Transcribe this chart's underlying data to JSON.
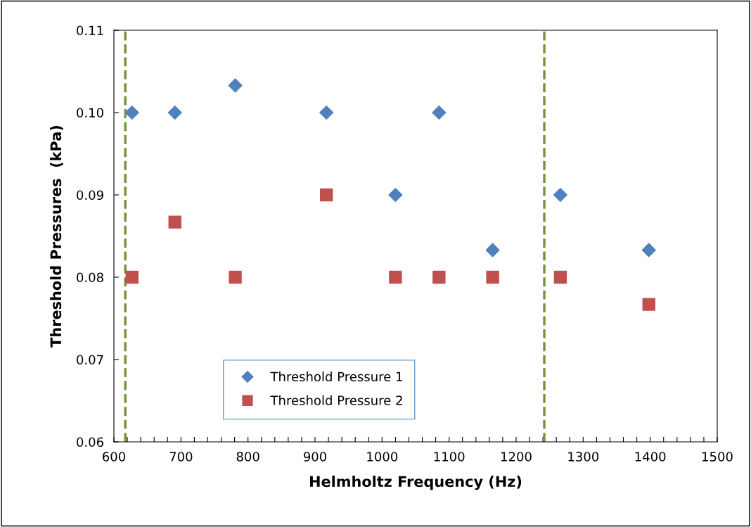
{
  "chart_data": {
    "type": "scatter",
    "xlabel": "Helmholtz Frequency (Hz)",
    "ylabel": "Threshold Pressures  (kPa)",
    "series": [
      {
        "name": "Threshold Pressure 1",
        "color": "#4f81bd",
        "marker": "diamond",
        "x": [
          627,
          691,
          781,
          917,
          1020,
          1085,
          1165,
          1266,
          1398
        ],
        "values": [
          0.1,
          0.1,
          0.1033,
          0.1,
          0.09,
          0.1,
          0.0833,
          0.09,
          0.0833
        ]
      },
      {
        "name": "Threshold Pressure 2",
        "color": "#c0504d",
        "marker": "square",
        "x": [
          627,
          691,
          781,
          917,
          1020,
          1085,
          1165,
          1266,
          1398
        ],
        "values": [
          0.08,
          0.0867,
          0.08,
          0.09,
          0.08,
          0.08,
          0.08,
          0.08,
          0.0767
        ]
      }
    ],
    "xlim": [
      600,
      1500
    ],
    "xticks": [
      600,
      {
        "value": 620,
        "label": null
      },
      {
        "value": 640,
        "label": null
      },
      {
        "value": 660,
        "label": null
      },
      {
        "value": 680,
        "label": null
      },
      700,
      {
        "value": 720,
        "label": null
      },
      {
        "value": 740,
        "label": null
      },
      {
        "value": 760,
        "label": null
      },
      {
        "value": 780,
        "label": null
      },
      800,
      {
        "value": 820,
        "label": null
      },
      {
        "value": 840,
        "label": null
      },
      {
        "value": 860,
        "label": null
      },
      {
        "value": 880,
        "label": null
      },
      900,
      {
        "value": 920,
        "label": null
      },
      {
        "value": 940,
        "label": null
      },
      {
        "value": 960,
        "label": null
      },
      {
        "value": 980,
        "label": null
      },
      1000,
      {
        "value": 1020,
        "label": null
      },
      {
        "value": 1040,
        "label": null
      },
      {
        "value": 1060,
        "label": null
      },
      {
        "value": 1080,
        "label": null
      },
      1100,
      {
        "value": 1120,
        "label": null
      },
      {
        "value": 1140,
        "label": null
      },
      {
        "value": 1160,
        "label": null
      },
      {
        "value": 1180,
        "label": null
      },
      1200,
      {
        "value": 1220,
        "label": null
      },
      {
        "value": 1240,
        "label": null
      },
      {
        "value": 1260,
        "label": null
      },
      {
        "value": 1280,
        "label": null
      },
      1300,
      {
        "value": 1320,
        "label": null
      },
      {
        "value": 1340,
        "label": null
      },
      {
        "value": 1360,
        "label": null
      },
      {
        "value": 1380,
        "label": null
      },
      1400,
      {
        "value": 1420,
        "label": null
      },
      {
        "value": 1440,
        "label": null
      },
      {
        "value": 1460,
        "label": null
      },
      {
        "value": 1480,
        "label": null
      },
      1500
    ],
    "ylim": [
      0.06,
      0.11
    ],
    "yticks": [
      {
        "value": 0.06,
        "label": "0.06"
      },
      {
        "value": 0.07,
        "label": "0.07"
      },
      {
        "value": 0.08,
        "label": "0.08"
      },
      {
        "value": 0.09,
        "label": "0.09"
      },
      {
        "value": 0.1,
        "label": "0.10"
      },
      {
        "value": 0.11,
        "label": "0.11"
      }
    ],
    "ref_lines": [
      {
        "axis": "x",
        "value": 617,
        "color": "#77933c",
        "line_style": "dashed"
      },
      {
        "axis": "x",
        "value": 1242,
        "color": "#77933c",
        "line_style": "dashed"
      }
    ],
    "grid": false,
    "legend": "bottom"
  }
}
